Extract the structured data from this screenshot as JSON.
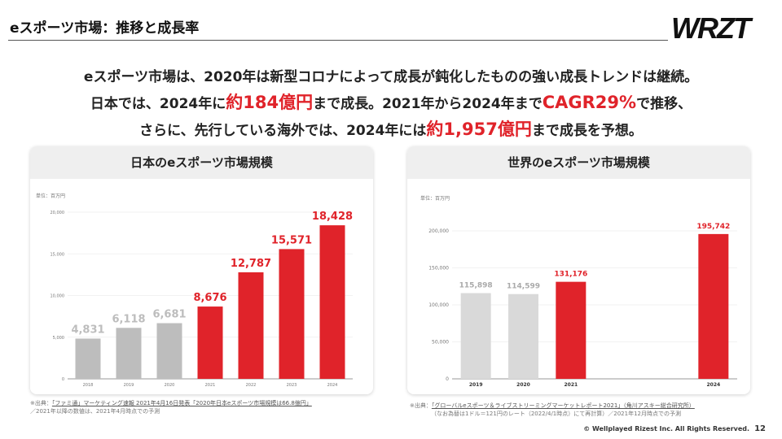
{
  "header": {
    "title": "eスポーツ市場：推移と成長率",
    "logo": "WRZT"
  },
  "lead": {
    "line1": "eスポーツ市場は、2020年は新型コロナによって成長が鈍化したものの強い成長トレンドは継続。",
    "line2_a": "日本では、2024年に",
    "line2_hl1": "約184億円",
    "line2_b": "まで成長。2021年から2024年まで",
    "line2_hl2": "CAGR29%",
    "line2_c": "で推移、",
    "line3_a": "さらに、先行している海外では、2024年には",
    "line3_hl": "約1,957億円",
    "line3_b": "まで成長を予想。"
  },
  "colors": {
    "accent": "#e0232a",
    "gray_bar": "#bdbdbd",
    "light_bar": "#d9d9d9"
  },
  "chart_data": [
    {
      "type": "bar",
      "title": "日本のeスポーツ市場規模",
      "unit": "単位：百万円",
      "categories": [
        "2018",
        "2019",
        "2020",
        "2021",
        "2022",
        "2023",
        "2024"
      ],
      "values": [
        4831,
        6118,
        6681,
        8676,
        12787,
        15571,
        18428
      ],
      "labels": [
        "4,831",
        "6,118",
        "6,681",
        "8,676",
        "12,787",
        "15,571",
        "18,428"
      ],
      "highlight": [
        false,
        false,
        false,
        true,
        true,
        true,
        true
      ],
      "ylim": [
        0,
        20000
      ],
      "yticks": [
        "0",
        "5,000",
        "10,000",
        "15,000",
        "20,000"
      ],
      "ytick_values": [
        0,
        5000,
        10000,
        15000,
        20000
      ],
      "grid": true
    },
    {
      "type": "bar",
      "title": "世界のeスポーツ市場規模",
      "unit": "単位：百万円",
      "categories": [
        "2019",
        "2020",
        "2021",
        "2024"
      ],
      "values": [
        115898,
        114599,
        131176,
        195742
      ],
      "labels": [
        "115,898",
        "114,599",
        "131,176",
        "195,742"
      ],
      "highlight": [
        false,
        false,
        true,
        true
      ],
      "ylim": [
        0,
        200000
      ],
      "yticks": [
        "0",
        "50,000",
        "100,000",
        "150,000",
        "200,000"
      ],
      "ytick_values": [
        0,
        50000,
        100000,
        150000,
        200000
      ],
      "grid": true
    }
  ],
  "notes": {
    "jp_prefix": "※出典：",
    "jp_source": "「ファミ通」マーケティング速報 2021年4月16日発表「2020年日本eスポーツ市場規模は66.8億円」",
    "jp_line2": "／2021年以降の数値は、2021年4月時点での予測",
    "world_prefix": "※出典：",
    "world_source": "「グローバルeスポーツ＆ライブストリーミングマーケットレポート2021」（角川アスキー総合研究所）",
    "world_line2": "（なお為替は1ドル＝121円のレート（2022/4/1時点）にて再計算）／2021年12月時点での予測"
  },
  "footer": {
    "copyright": "© Wellplayed Rizest Inc. All Rights Reserved.",
    "page": "12"
  }
}
